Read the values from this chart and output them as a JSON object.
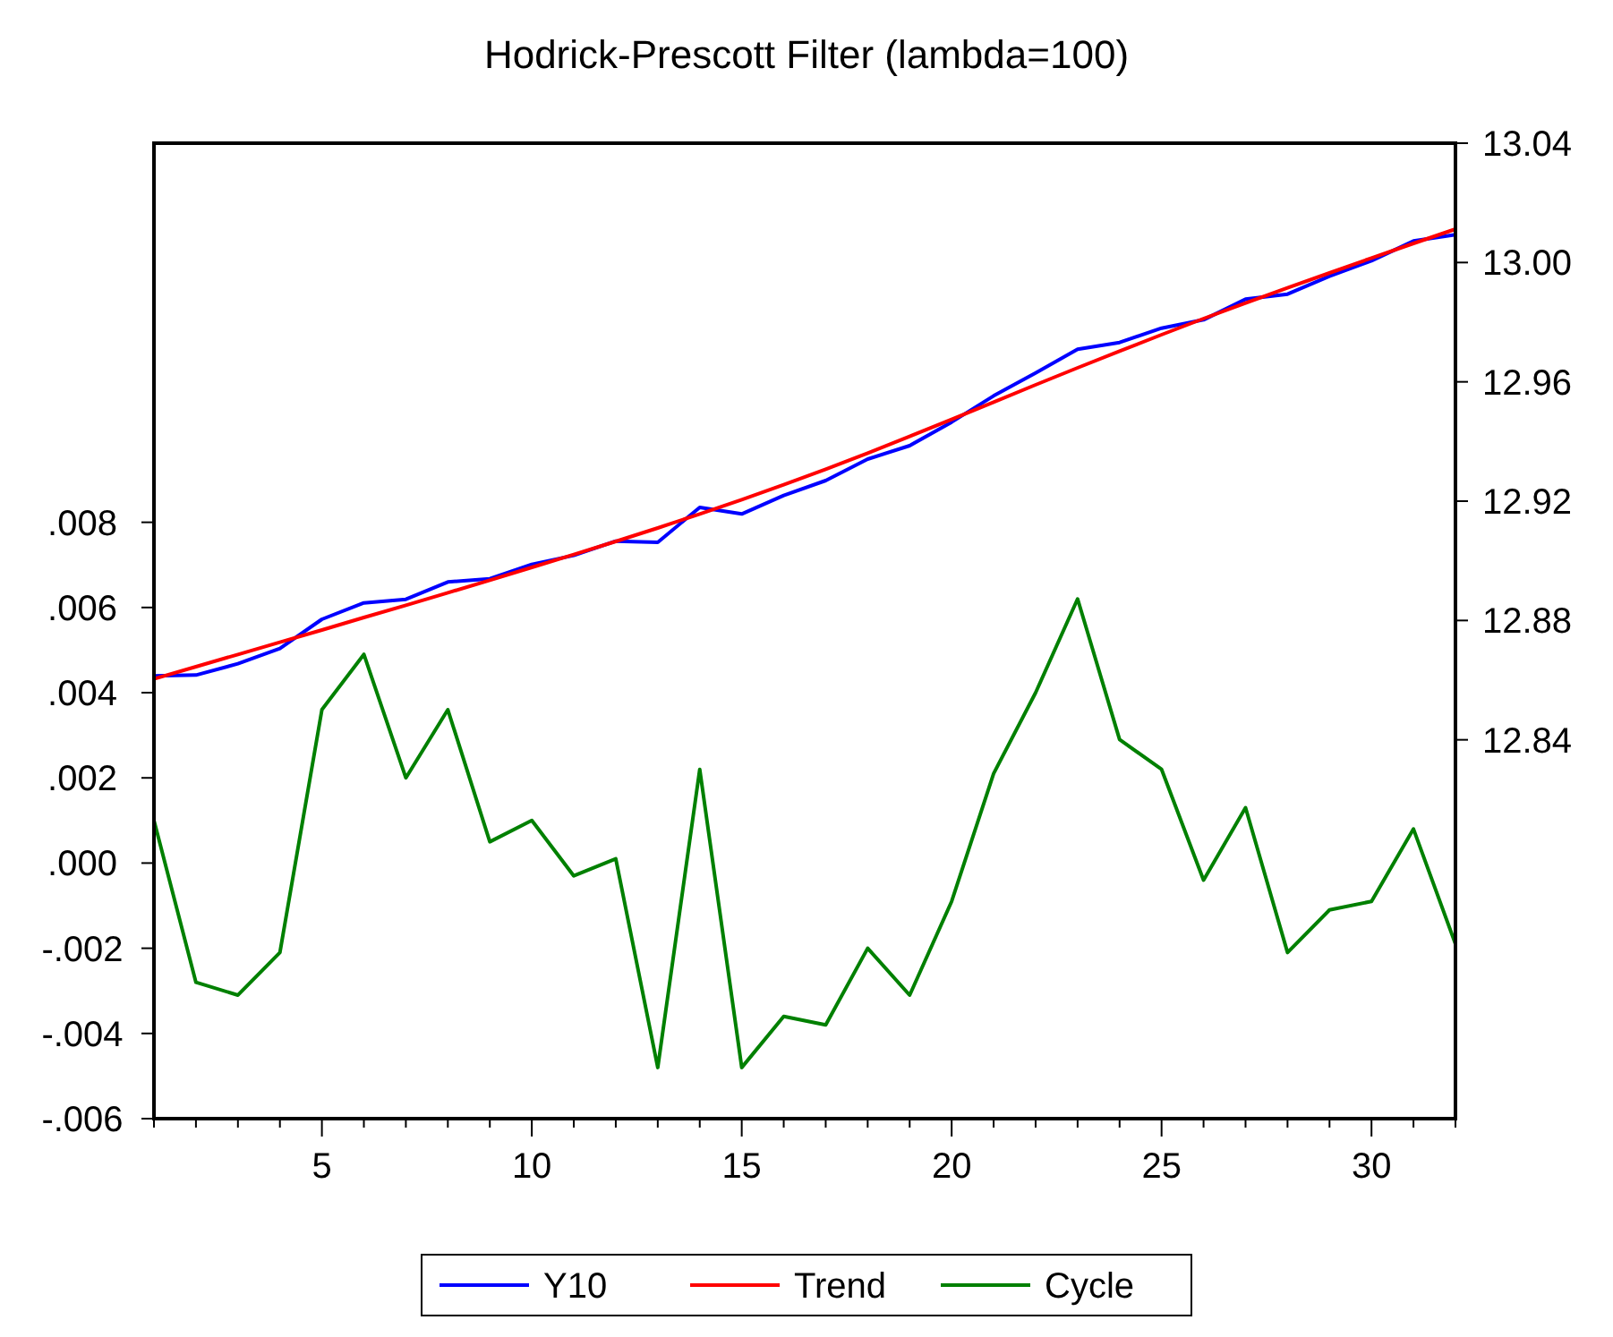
{
  "chart_data": {
    "type": "line",
    "title": "Hodrick-Prescott Filter (lambda=100)",
    "x": [
      1,
      2,
      3,
      4,
      5,
      6,
      7,
      8,
      9,
      10,
      11,
      12,
      13,
      14,
      15,
      16,
      17,
      18,
      19,
      20,
      21,
      22,
      23,
      24,
      25,
      26,
      27,
      28,
      29,
      30,
      31,
      32
    ],
    "series": [
      {
        "name": "Y10",
        "color": "#0000ff",
        "axis": "y2",
        "values": [
          12.8614,
          12.8617,
          12.8655,
          12.8706,
          12.8804,
          12.8859,
          12.8871,
          12.8929,
          12.894,
          12.8988,
          12.9018,
          12.9066,
          12.9062,
          12.9179,
          12.9157,
          12.9219,
          12.9269,
          12.9341,
          12.9386,
          12.9465,
          12.9553,
          12.963,
          12.9709,
          12.9732,
          12.978,
          12.9808,
          12.9877,
          12.9894,
          12.9954,
          13.0006,
          13.0072,
          13.0093
        ]
      },
      {
        "name": "Trend",
        "color": "#ff0000",
        "axis": "y2",
        "values": [
          12.8604,
          12.8645,
          12.8686,
          12.8727,
          12.8768,
          12.881,
          12.8851,
          12.8893,
          12.8935,
          12.8978,
          12.9021,
          12.9065,
          12.911,
          12.9157,
          12.9205,
          12.9255,
          12.9307,
          12.9361,
          12.9417,
          12.9474,
          12.9532,
          12.959,
          12.9647,
          12.9703,
          12.9758,
          12.9812,
          12.9864,
          12.9915,
          12.9965,
          13.0015,
          13.0064,
          13.0112
        ]
      },
      {
        "name": "Cycle",
        "color": "#008000",
        "axis": "y",
        "values": [
          0.001,
          -0.0028,
          -0.0031,
          -0.0021,
          0.0036,
          0.0049,
          0.002,
          0.0036,
          0.0005,
          0.001,
          -0.0003,
          0.0001,
          -0.0048,
          0.0022,
          -0.0048,
          -0.0036,
          -0.0038,
          -0.002,
          -0.0031,
          -0.0009,
          0.0021,
          0.004,
          0.0062,
          0.0029,
          0.0022,
          -0.0004,
          0.0013,
          -0.0021,
          -0.0011,
          -0.0009,
          0.0008,
          -0.0019
        ]
      }
    ],
    "xlim": [
      1,
      32
    ],
    "xticks": [
      {
        "value": 1,
        "label": null
      },
      {
        "value": 2,
        "label": null
      },
      {
        "value": 3,
        "label": null
      },
      {
        "value": 4,
        "label": null
      },
      5,
      {
        "value": 6,
        "label": null
      },
      {
        "value": 7,
        "label": null
      },
      {
        "value": 8,
        "label": null
      },
      {
        "value": 9,
        "label": null
      },
      10,
      {
        "value": 11,
        "label": null
      },
      {
        "value": 12,
        "label": null
      },
      {
        "value": 13,
        "label": null
      },
      {
        "value": 14,
        "label": null
      },
      15,
      {
        "value": 16,
        "label": null
      },
      {
        "value": 17,
        "label": null
      },
      {
        "value": 18,
        "label": null
      },
      {
        "value": 19,
        "label": null
      },
      20,
      {
        "value": 21,
        "label": null
      },
      {
        "value": 22,
        "label": null
      },
      {
        "value": 23,
        "label": null
      },
      {
        "value": 24,
        "label": null
      },
      25,
      {
        "value": 26,
        "label": null
      },
      {
        "value": 27,
        "label": null
      },
      {
        "value": 28,
        "label": null
      },
      {
        "value": 29,
        "label": null
      },
      30,
      {
        "value": 31,
        "label": null
      },
      {
        "value": 32,
        "label": null
      }
    ],
    "ylim": [
      -0.006,
      0.0169
    ],
    "yticks": [
      {
        "value": -0.006,
        "label": "-.006"
      },
      {
        "value": -0.004,
        "label": "-.004"
      },
      {
        "value": -0.002,
        "label": "-.002"
      },
      {
        "value": 0,
        "label": ".000"
      },
      {
        "value": 0.002,
        "label": ".002"
      },
      {
        "value": 0.004,
        "label": ".004"
      },
      {
        "value": 0.006,
        "label": ".006"
      },
      {
        "value": 0.008,
        "label": ".008"
      }
    ],
    "y2lim": [
      12.713,
      13.04
    ],
    "y2ticks": [
      12.84,
      12.88,
      12.92,
      12.96,
      {
        "value": 13,
        "label": "13.00"
      },
      13.04
    ],
    "grid": false,
    "legend": "bottom",
    "marker": "none",
    "line_style": "solid"
  }
}
